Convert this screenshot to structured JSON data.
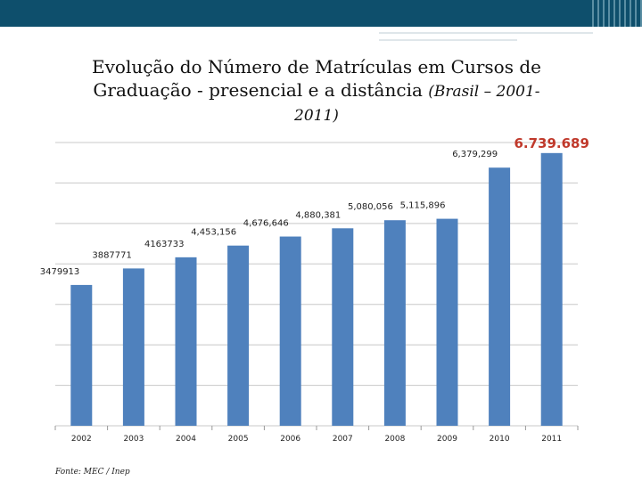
{
  "header": {
    "title_line1": "Evolução do Número de Matrículas em Cursos de",
    "title_line2_main": "Graduação - presencial e a distância ",
    "title_line2_italic": "(Brasil – 2001-",
    "title_line3_italic": "2011)"
  },
  "source": "Fonte: MEC / Inep",
  "colors": {
    "bar": "#4f81bd",
    "highlight": "#c0392b",
    "grid": "#c8c8c8",
    "header_dark": "#0e4f6c"
  },
  "chart_data": {
    "type": "bar",
    "title": "Evolução do Número de Matrículas em Cursos de Graduação - presencial e a distância (Brasil – 2001-2011)",
    "xlabel": "",
    "ylabel": "",
    "ylim": [
      0,
      7000000
    ],
    "grid": true,
    "categories": [
      "2002",
      "2003",
      "2004",
      "2005",
      "2006",
      "2007",
      "2008",
      "2009",
      "2010",
      "2011"
    ],
    "values": [
      3479913,
      3887771,
      4163733,
      4453156,
      4676646,
      4880381,
      5080056,
      5115896,
      6379299,
      6739689
    ],
    "data_labels": [
      "3479913",
      "3887771",
      "4163733",
      "4,453,156",
      "4,676,646",
      "4,880,381",
      "5,080,056",
      "5,115,896",
      "6,379,299",
      ""
    ],
    "highlight_label": "6.739.689"
  }
}
